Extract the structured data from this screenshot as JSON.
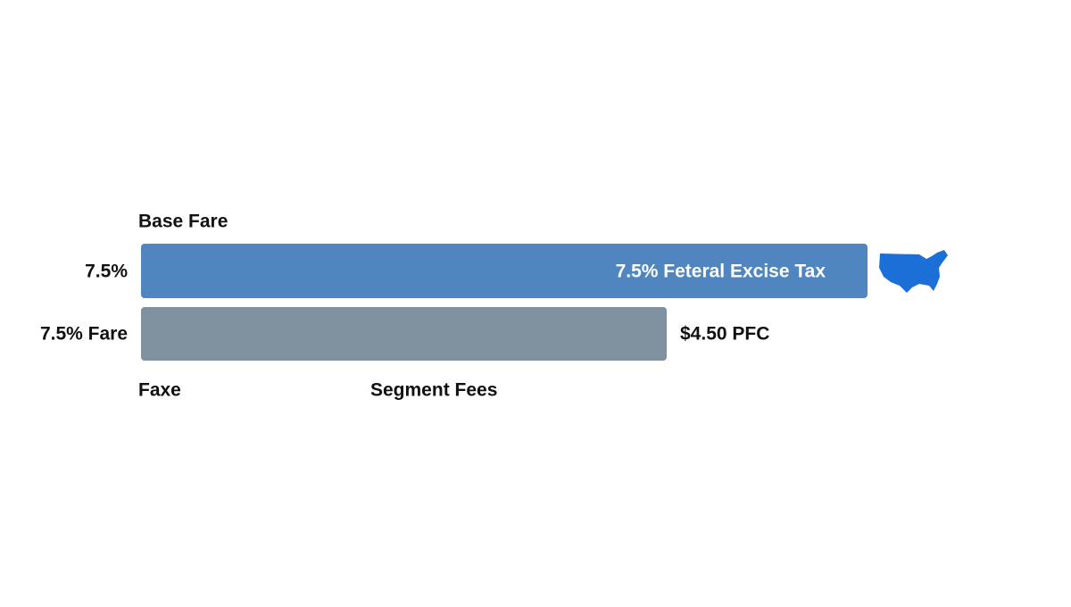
{
  "header": {
    "title": "Base Fare"
  },
  "rows": [
    {
      "left_label": "7.5%",
      "bar_text": "7.5% Feteral Excise Tax"
    },
    {
      "left_label": "7.5% Fare",
      "right_label": "$4.50 PFC"
    }
  ],
  "footer_labels": [
    "Faxe",
    "Segment Fees"
  ]
}
